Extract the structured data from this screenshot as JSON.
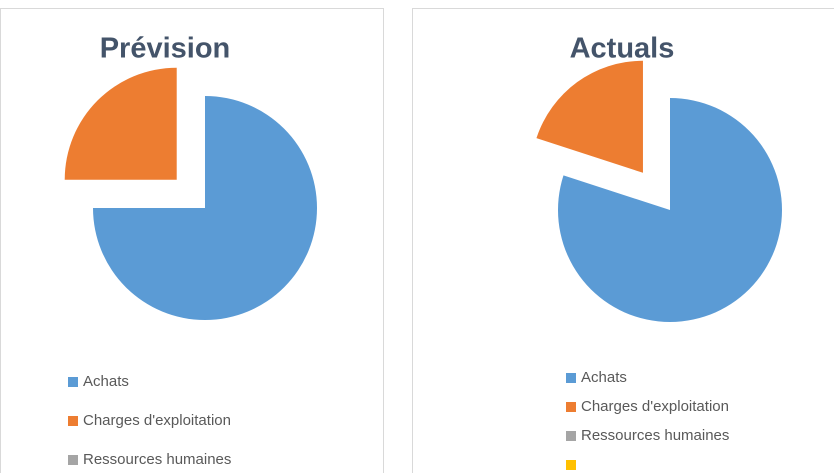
{
  "chart_data": [
    {
      "type": "pie",
      "title": "Prévision",
      "categories": [
        "Achats",
        "Charges d'exploitation",
        "Ressources humaines"
      ],
      "values": [
        75,
        25,
        0
      ],
      "colors": [
        "#5b9bd5",
        "#ed7d31",
        "#a5a5a5"
      ],
      "exploded": 1
    },
    {
      "type": "pie",
      "title": "Actuals",
      "categories": [
        "Achats",
        "Charges d'exploitation",
        "Ressources humaines",
        null
      ],
      "values": [
        80,
        20,
        0,
        0
      ],
      "colors": [
        "#5b9bd5",
        "#ed7d31",
        "#a5a5a5",
        "#ffc000"
      ],
      "exploded": 1
    }
  ]
}
